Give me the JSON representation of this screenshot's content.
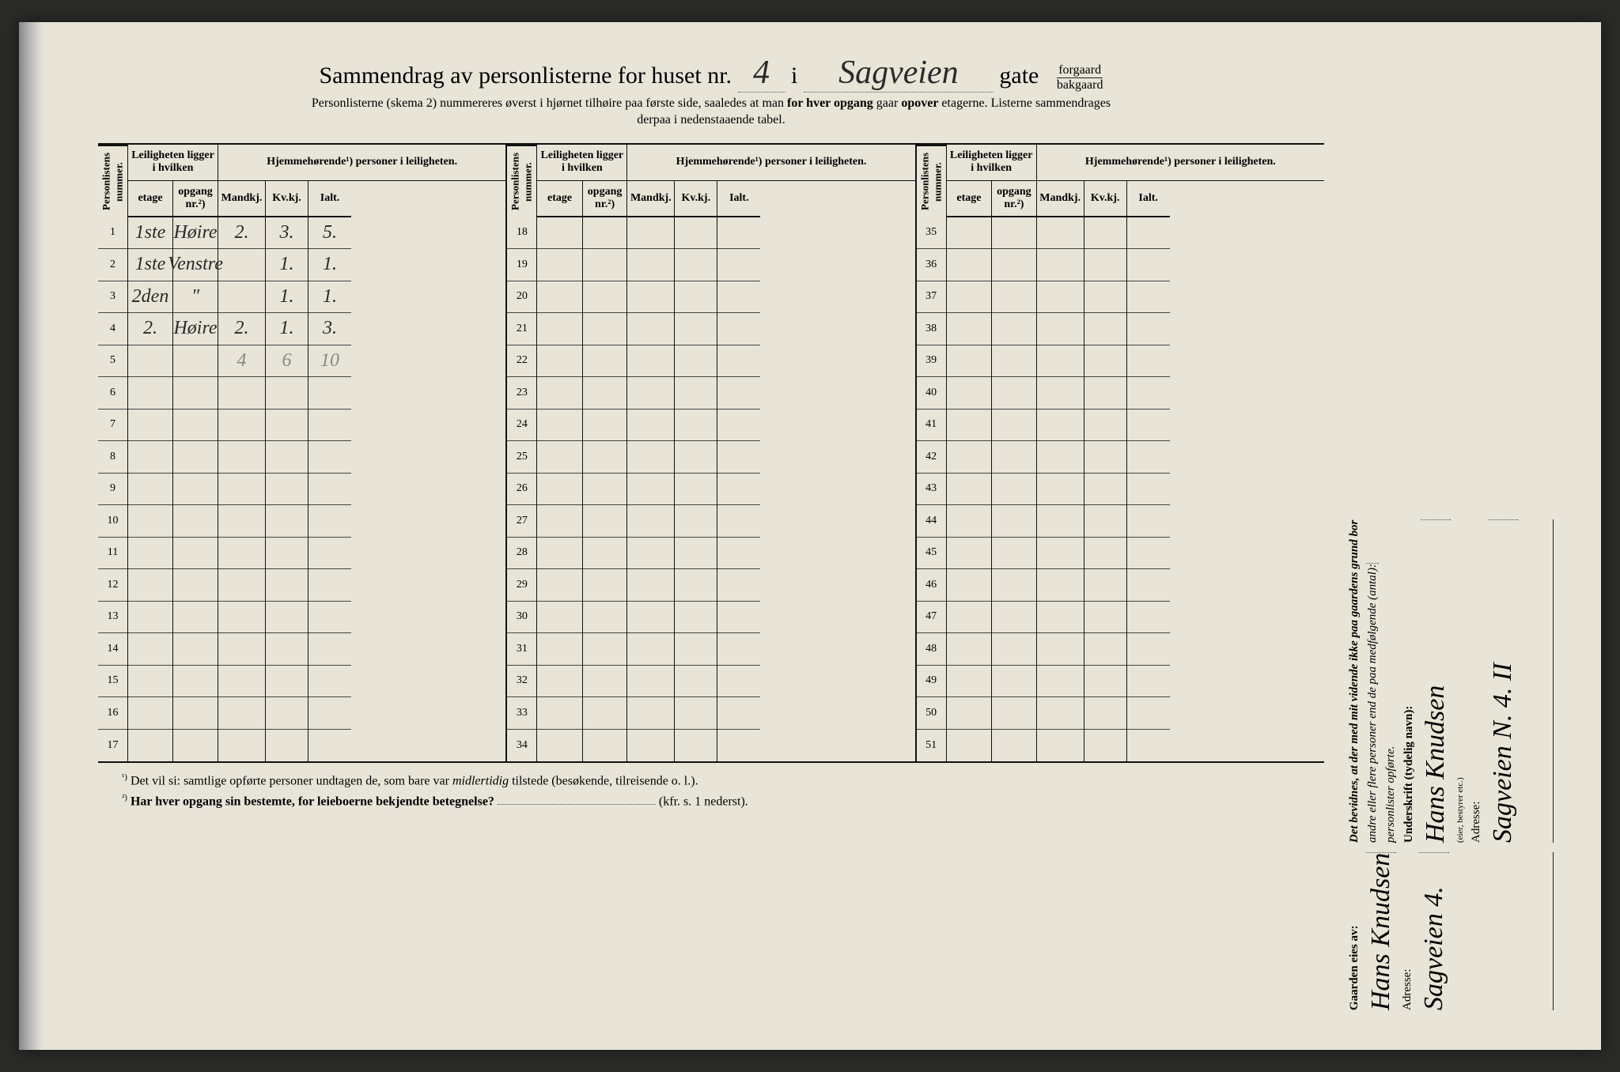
{
  "header": {
    "title_prefix": "Sammendrag av personlisterne for huset nr.",
    "house_nr": "4",
    "i": "i",
    "street": "Sagveien",
    "gate": "gate",
    "forgaard": "forgaard",
    "bakgaard": "bakgaard",
    "sub1": "Personlisterne (skema 2) nummereres øverst i hjørnet tilhøire paa første side, saaledes at man",
    "sub1b": "for hver opgang",
    "sub1c": "gaar",
    "sub1d": "opover",
    "sub1e": "etagerne.   Listerne sammendrages",
    "sub2": "derpaa i nedenstaaende tabel."
  },
  "col_headers": {
    "personlistens": "Personlistens nummer.",
    "leiligheten": "Leiligheten ligger i hvilken",
    "hjemme": "Hjemmehørende¹) personer i leiligheten.",
    "etage": "etage",
    "opgang": "opgang nr.²)",
    "mandkj": "Mandkj.",
    "kvkj": "Kv.kj.",
    "ialt": "Ialt."
  },
  "groups": [
    {
      "start": 1,
      "rows": [
        {
          "n": "1",
          "etage": "1ste",
          "opgang": "Høire",
          "m": "2.",
          "k": "3.",
          "i": "5.",
          "mark": "✓"
        },
        {
          "n": "2",
          "etage": "1ste",
          "opgang": "Venstre",
          "m": "",
          "k": "1.",
          "i": "1.",
          "mark": "✓"
        },
        {
          "n": "3",
          "etage": "2den",
          "opgang": "\"",
          "m": "",
          "k": "1.",
          "i": "1.",
          "mark": "✓"
        },
        {
          "n": "4",
          "etage": "2.",
          "opgang": "Høire",
          "m": "2.",
          "k": "1.",
          "i": "3.",
          "mark": "✓"
        },
        {
          "n": "5",
          "etage": "",
          "opgang": "",
          "m": "4",
          "k": "6",
          "i": "10",
          "light": true
        },
        {
          "n": "6"
        },
        {
          "n": "7"
        },
        {
          "n": "8"
        },
        {
          "n": "9"
        },
        {
          "n": "10"
        },
        {
          "n": "11"
        },
        {
          "n": "12"
        },
        {
          "n": "13"
        },
        {
          "n": "14"
        },
        {
          "n": "15"
        },
        {
          "n": "16"
        },
        {
          "n": "17"
        }
      ]
    },
    {
      "start": 18,
      "rows": [
        {
          "n": "18"
        },
        {
          "n": "19"
        },
        {
          "n": "20"
        },
        {
          "n": "21"
        },
        {
          "n": "22"
        },
        {
          "n": "23"
        },
        {
          "n": "24"
        },
        {
          "n": "25"
        },
        {
          "n": "26"
        },
        {
          "n": "27"
        },
        {
          "n": "28"
        },
        {
          "n": "29"
        },
        {
          "n": "30"
        },
        {
          "n": "31"
        },
        {
          "n": "32"
        },
        {
          "n": "33"
        },
        {
          "n": "34"
        }
      ]
    },
    {
      "start": 35,
      "rows": [
        {
          "n": "35"
        },
        {
          "n": "36"
        },
        {
          "n": "37"
        },
        {
          "n": "38"
        },
        {
          "n": "39"
        },
        {
          "n": "40"
        },
        {
          "n": "41"
        },
        {
          "n": "42"
        },
        {
          "n": "43"
        },
        {
          "n": "44"
        },
        {
          "n": "45"
        },
        {
          "n": "46"
        },
        {
          "n": "47"
        },
        {
          "n": "48"
        },
        {
          "n": "49"
        },
        {
          "n": "50"
        },
        {
          "n": "51"
        }
      ]
    }
  ],
  "footnotes": {
    "f1_sup": "¹)",
    "f1": "Det vil si: samtlige opførte personer undtagen de, som bare var",
    "f1_it": "midlertidig",
    "f1b": "tilstede (besøkende, tilreisende o. l.).",
    "f2_sup": "²)",
    "f2": "Har hver opgang sin bestemte, for leieboerne bekjendte betegnelse?",
    "f2b": "(kfr. s. 1 nederst)."
  },
  "side": {
    "gaarden_eies": "Gaarden eies av:",
    "owner": "Hans Knudsen",
    "adresse_label": "Adresse:",
    "adresse": "Sagveien 4.",
    "bevidnes1": "Det bevidnes, at der med mit vidende ikke paa gaardens grund bor",
    "bevidnes2": "andre eller flere personer end de paa medfølgende (antal):",
    "bevidnes3": "personlister opførte.",
    "underskrift_label": "Underskrift (tydelig navn):",
    "underskrift": "Hans Knudsen",
    "eier_note": "(eier, bestyrer etc.)",
    "adresse2": "Sagveien N. 4. II"
  },
  "colors": {
    "paper": "#e8e4d8",
    "ink": "#111111",
    "hand": "#2a2a2a",
    "pencil": "#888888"
  }
}
